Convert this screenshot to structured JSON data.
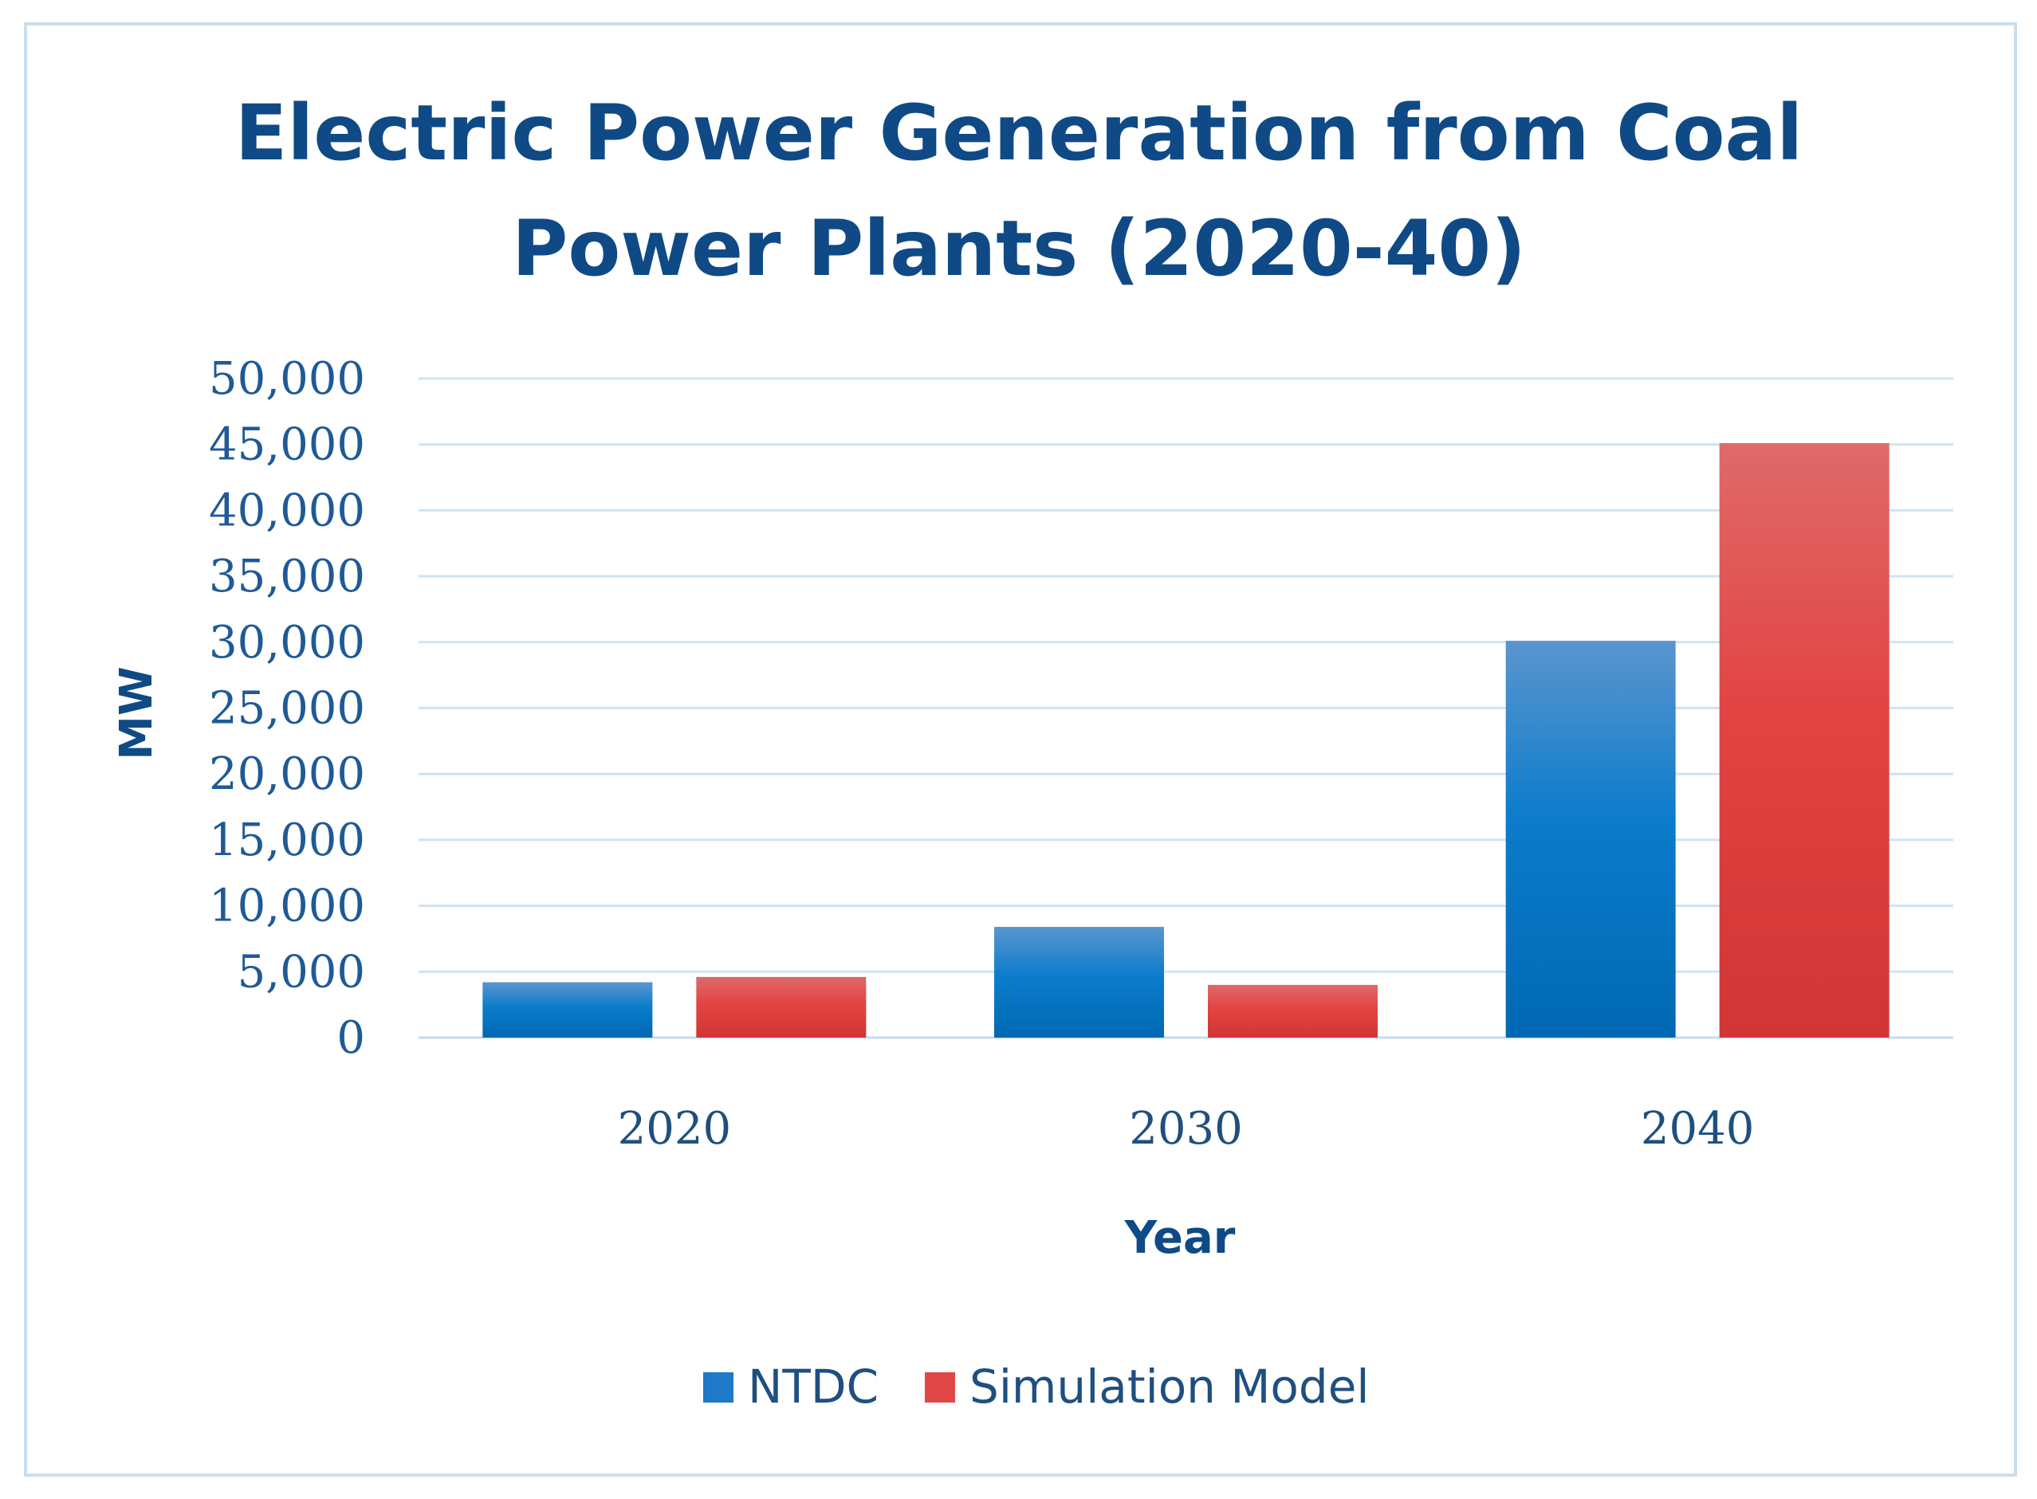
{
  "chart_data": {
    "type": "bar",
    "title_lines": [
      "Electric Power Generation from Coal",
      "Power Plants (2020-40)"
    ],
    "xlabel": "Year",
    "ylabel": "MW",
    "categories": [
      "2020",
      "2030",
      "2040"
    ],
    "series": [
      {
        "name": "NTDC",
        "values": [
          4200,
          8400,
          30100
        ],
        "color": "#1f78c8"
      },
      {
        "name": "Simulation Model",
        "values": [
          4600,
          4000,
          45100
        ],
        "color": "#e04848"
      }
    ],
    "ylim": [
      0,
      50000
    ],
    "yticks": [
      0,
      5000,
      10000,
      15000,
      20000,
      25000,
      30000,
      35000,
      40000,
      45000,
      50000
    ],
    "ytick_labels": [
      "0",
      "5,000",
      "10,000",
      "15,000",
      "20,000",
      "25,000",
      "30,000",
      "35,000",
      "40,000",
      "45,000",
      "50,000"
    ],
    "grid": true,
    "legend_position": "bottom"
  }
}
